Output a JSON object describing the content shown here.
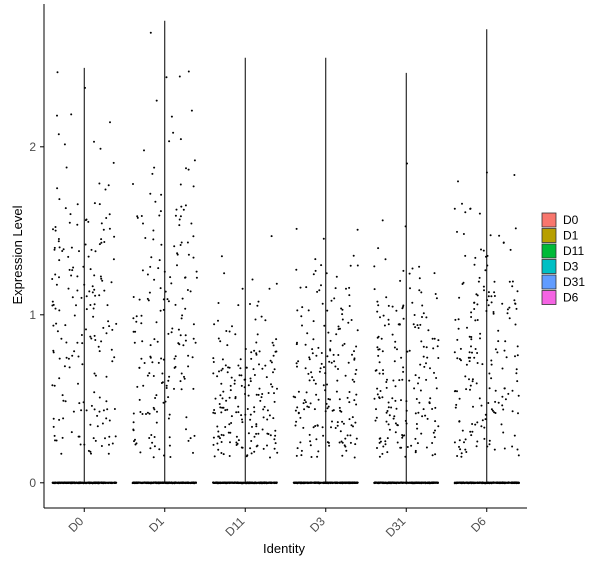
{
  "chart_data": {
    "type": "violin",
    "xlabel": "Identity",
    "ylabel": "Expression Level",
    "categories": [
      "D0",
      "D1",
      "D11",
      "D3",
      "D31",
      "D6"
    ],
    "ylim": [
      -0.15,
      2.85
    ],
    "yticks": [
      0,
      1,
      2
    ],
    "grid": false,
    "legend": {
      "position": "right",
      "entries": [
        {
          "label": "D0",
          "color": "#F8766D"
        },
        {
          "label": "D1",
          "color": "#B79F00"
        },
        {
          "label": "D11",
          "color": "#00BA38"
        },
        {
          "label": "D3",
          "color": "#00BFC4"
        },
        {
          "label": "D31",
          "color": "#619CFF"
        },
        {
          "label": "D6",
          "color": "#F564E3"
        }
      ]
    },
    "series": [
      {
        "name": "D0",
        "max": 2.47,
        "point_mean": 0.95,
        "point_sd": 0.55
      },
      {
        "name": "D1",
        "max": 2.75,
        "point_mean": 0.95,
        "point_sd": 0.6
      },
      {
        "name": "D11",
        "max": 2.53,
        "point_mean": 0.5,
        "point_sd": 0.35
      },
      {
        "name": "D3",
        "max": 2.53,
        "point_mean": 0.6,
        "point_sd": 0.4
      },
      {
        "name": "D31",
        "max": 2.44,
        "point_mean": 0.6,
        "point_sd": 0.4
      },
      {
        "name": "D6",
        "max": 2.7,
        "point_mean": 0.7,
        "point_sd": 0.5
      }
    ]
  }
}
